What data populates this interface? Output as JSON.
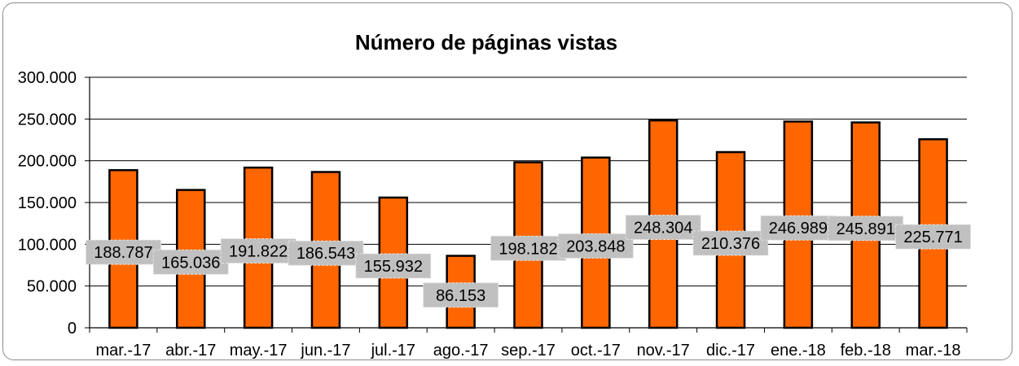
{
  "chart_data": {
    "type": "bar",
    "title": "Número de páginas vistas",
    "xlabel": "",
    "ylabel": "",
    "categories": [
      "mar.-17",
      "abr.-17",
      "may.-17",
      "jun.-17",
      "jul.-17",
      "ago.-17",
      "sep.-17",
      "oct.-17",
      "nov.-17",
      "dic.-17",
      "ene.-18",
      "feb.-18",
      "mar.-18"
    ],
    "values": [
      188787,
      165036,
      191822,
      186543,
      155932,
      86153,
      198182,
      203848,
      248304,
      210376,
      246989,
      245891,
      225771
    ],
    "value_labels": [
      "188.787",
      "165.036",
      "191.822",
      "186.543",
      "155.932",
      "86.153",
      "198.182",
      "203.848",
      "248.304",
      "210.376",
      "246.989",
      "245.891",
      "225.771"
    ],
    "ylim": [
      0,
      300000
    ],
    "yticks": [
      0,
      50000,
      100000,
      150000,
      200000,
      250000,
      300000
    ],
    "ytick_labels": [
      "0",
      "50.000",
      "100.000",
      "150.000",
      "200.000",
      "250.000",
      "300.000"
    ],
    "grid": true,
    "legend": "none",
    "colors": {
      "bar": "#ff6600",
      "bar_border": "#000000",
      "label_box": "#c0c0c0"
    }
  }
}
